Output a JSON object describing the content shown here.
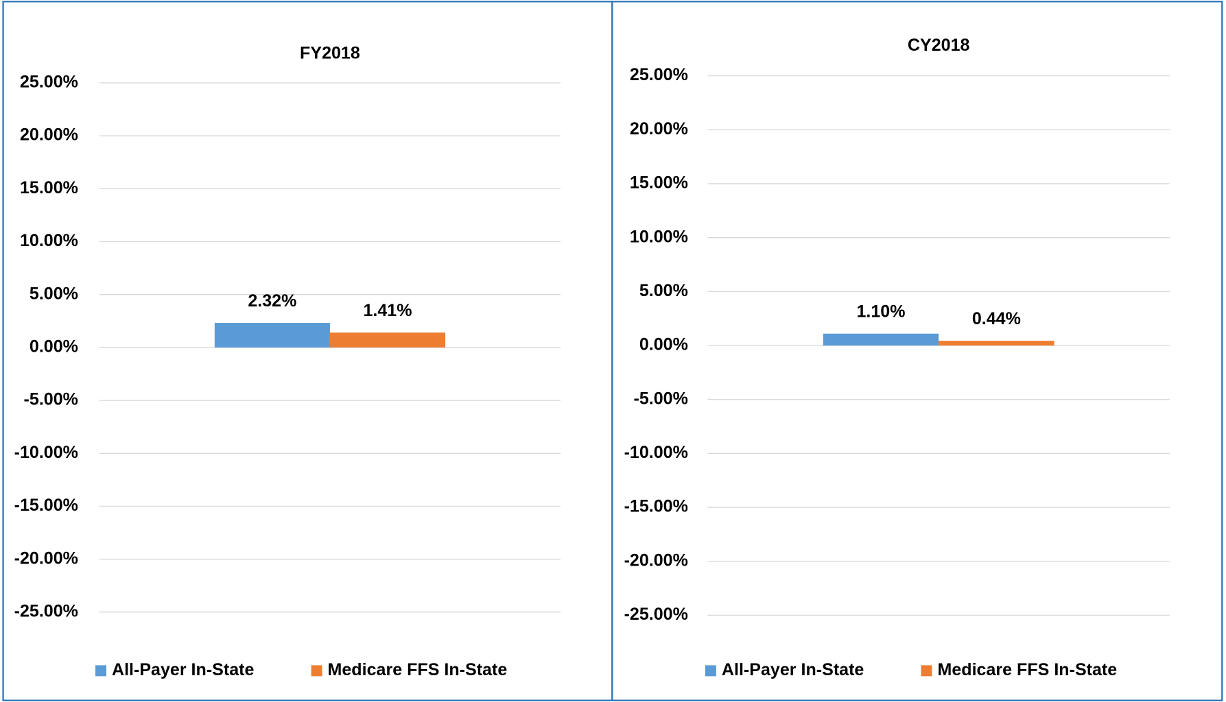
{
  "chart_data": [
    {
      "type": "bar",
      "title": "FY2018",
      "categories": [
        null
      ],
      "series": [
        {
          "name": "All-Payer In-State",
          "color": "#5b9bd5",
          "values": [
            2.32
          ],
          "value_labels": [
            "2.32%"
          ]
        },
        {
          "name": "Medicare FFS In-State",
          "color": "#ed7d31",
          "values": [
            1.41
          ],
          "value_labels": [
            "1.41%"
          ]
        }
      ],
      "ylim": [
        -25,
        25
      ],
      "yticks": [
        {
          "value": 25,
          "label": "25.00%"
        },
        {
          "value": 20,
          "label": "20.00%"
        },
        {
          "value": 15,
          "label": "15.00%"
        },
        {
          "value": 10,
          "label": "10.00%"
        },
        {
          "value": 5,
          "label": "5.00%"
        },
        {
          "value": 0,
          "label": "0.00%"
        },
        {
          "value": -5,
          "label": "-5.00%"
        },
        {
          "value": -10,
          "label": "-10.00%"
        },
        {
          "value": -15,
          "label": "-15.00%"
        },
        {
          "value": -20,
          "label": "-20.00%"
        },
        {
          "value": -25,
          "label": "-25.00%"
        }
      ],
      "grid": true,
      "legend": "bottom"
    },
    {
      "type": "bar",
      "title": "CY2018",
      "categories": [
        null
      ],
      "series": [
        {
          "name": "All-Payer In-State",
          "color": "#5b9bd5",
          "values": [
            1.1
          ],
          "value_labels": [
            "1.10%"
          ]
        },
        {
          "name": "Medicare FFS In-State",
          "color": "#ed7d31",
          "values": [
            0.44
          ],
          "value_labels": [
            "0.44%"
          ]
        }
      ],
      "ylim": [
        -25,
        25
      ],
      "yticks": [
        {
          "value": 25,
          "label": "25.00%"
        },
        {
          "value": 20,
          "label": "20.00%"
        },
        {
          "value": 15,
          "label": "15.00%"
        },
        {
          "value": 10,
          "label": "10.00%"
        },
        {
          "value": 5,
          "label": "5.00%"
        },
        {
          "value": 0,
          "label": "0.00%"
        },
        {
          "value": -5,
          "label": "-5.00%"
        },
        {
          "value": -10,
          "label": "-10.00%"
        },
        {
          "value": -15,
          "label": "-15.00%"
        },
        {
          "value": -20,
          "label": "-20.00%"
        },
        {
          "value": -25,
          "label": "-25.00%"
        }
      ],
      "grid": true,
      "legend": "bottom"
    }
  ]
}
